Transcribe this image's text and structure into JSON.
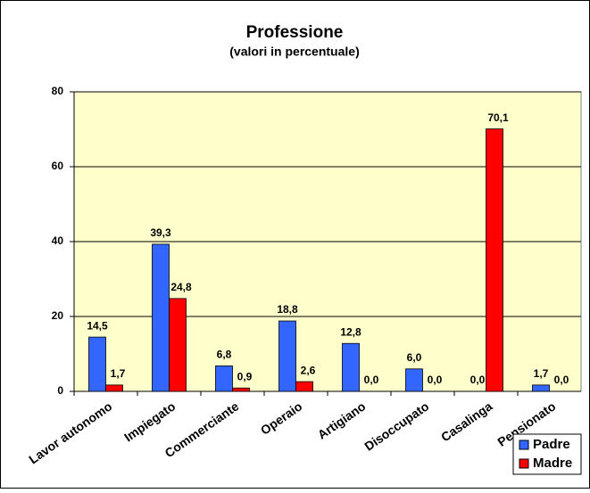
{
  "chart_data": {
    "type": "bar",
    "title": "Professione",
    "subtitle": "(valori in percentuale)",
    "categories": [
      "Lavor autonomo",
      "Impiegato",
      "Commerciante",
      "Operaio",
      "Artigiano",
      "Disoccupato",
      "Casalinga",
      "Pensionato"
    ],
    "series": [
      {
        "name": "Padre",
        "color": "#3366ff",
        "values": [
          14.5,
          39.3,
          6.8,
          18.8,
          12.8,
          6,
          0,
          1.7
        ],
        "value_labels": [
          "14,5",
          "39,3",
          "6,8",
          "18,8",
          "12,8",
          "6,0",
          "0,0",
          "1,7"
        ]
      },
      {
        "name": "Madre",
        "color": "#ff0000",
        "values": [
          1.7,
          24.8,
          0.9,
          2.6,
          0,
          0,
          70.1,
          0
        ],
        "value_labels": [
          "1,7",
          "24,8",
          "0,9",
          "2,6",
          "0,0",
          "0,0",
          "70,1",
          "0,0"
        ]
      }
    ],
    "ylim": [
      0,
      80
    ],
    "yticks": [
      0,
      20,
      40,
      60,
      80
    ],
    "grid": true,
    "plot_background": "#ffffcc",
    "legend_position": "bottom-right"
  }
}
